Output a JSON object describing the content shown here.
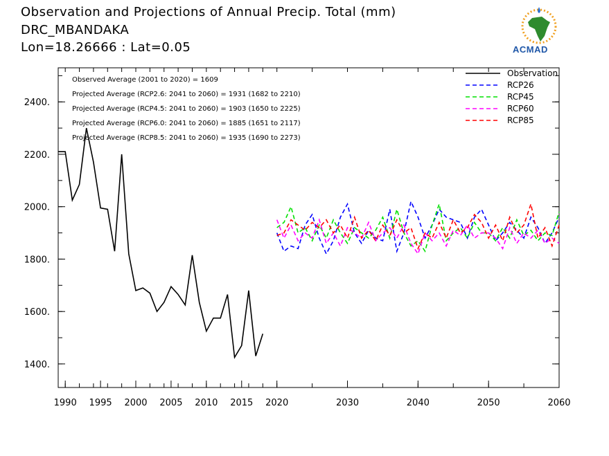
{
  "header": {
    "title": "Observation and Projections of Annual Precip. Total (mm)",
    "station": "DRC_MBANDAKA",
    "coords": "Lon=18.26666 : Lat=0.05"
  },
  "logo": {
    "text": "ACMAD"
  },
  "chart_data": {
    "type": "line",
    "xlim": [
      1989,
      2060
    ],
    "ylim": [
      1310,
      2530
    ],
    "grid": false,
    "legend_position": "top-right",
    "x_ticks": [
      1990,
      1995,
      2000,
      2005,
      2010,
      2015,
      2020,
      2030,
      2040,
      2050,
      2060
    ],
    "x_tick_labels": [
      "1990",
      "1995",
      "2000",
      "2005",
      "2010",
      "2015",
      "2020",
      "2030",
      "2040",
      "2050",
      "2060"
    ],
    "y_ticks": [
      1400,
      1600,
      1800,
      2000,
      2200,
      2400
    ],
    "y_tick_labels": [
      "1400.",
      "1600.",
      "1800.",
      "2000.",
      "2200.",
      "2400."
    ],
    "annotations": [
      "Observed Average (2001 to 2020) = 1609",
      "Projected Average (RCP2.6: 2041 to 2060) = 1931 (1682 to 2210)",
      "Projected Average (RCP4.5: 2041 to 2060) = 1903 (1650 to 2225)",
      "Projected Average (RCP6.0: 2041 to 2060) = 1885 (1651 to 2117)",
      "Projected Average (RCP8.5: 2041 to 2060) = 1935 (1690 to 2273)"
    ],
    "series": [
      {
        "name": "Observation",
        "color": "#000000",
        "style": "solid",
        "x": [
          1989,
          1990,
          1991,
          1992,
          1993,
          1994,
          1995,
          1996,
          1997,
          1998,
          1999,
          2000,
          2001,
          2002,
          2003,
          2004,
          2005,
          2006,
          2007,
          2008,
          2009,
          2010,
          2011,
          2012,
          2013,
          2014,
          2015,
          2016,
          2017,
          2018,
          2019,
          2020
        ],
        "values": [
          2210,
          2210,
          2025,
          2085,
          2300,
          2170,
          1995,
          1990,
          1830,
          2200,
          1820,
          1680,
          1690,
          1670,
          1600,
          1635,
          1695,
          1665,
          1625,
          1815,
          1635,
          1525,
          1575,
          1575,
          1665,
          1425,
          1470,
          1680,
          1430,
          1515,
          null,
          null
        ]
      },
      {
        "name": "RCP26",
        "color": "#0000ff",
        "style": "dashed",
        "x": [
          2020,
          2021,
          2022,
          2023,
          2024,
          2025,
          2026,
          2027,
          2028,
          2029,
          2030,
          2031,
          2032,
          2033,
          2034,
          2035,
          2036,
          2037,
          2038,
          2039,
          2040,
          2041,
          2042,
          2043,
          2044,
          2045,
          2046,
          2047,
          2048,
          2049,
          2050,
          2051,
          2052,
          2053,
          2054,
          2055,
          2056,
          2057,
          2058,
          2059,
          2060
        ],
        "values": [
          1900,
          1830,
          1850,
          1840,
          1930,
          1970,
          1880,
          1820,
          1870,
          1960,
          2010,
          1900,
          1860,
          1910,
          1880,
          1870,
          1990,
          1830,
          1900,
          2020,
          1960,
          1880,
          1930,
          1990,
          1960,
          1950,
          1940,
          1880,
          1960,
          1990,
          1930,
          1870,
          1900,
          1940,
          1910,
          1880,
          1960,
          1920,
          1860,
          1900,
          1960
        ]
      },
      {
        "name": "RCP45",
        "color": "#00e000",
        "style": "dashed",
        "x": [
          2020,
          2021,
          2022,
          2023,
          2024,
          2025,
          2026,
          2027,
          2028,
          2029,
          2030,
          2031,
          2032,
          2033,
          2034,
          2035,
          2036,
          2037,
          2038,
          2039,
          2040,
          2041,
          2042,
          2043,
          2044,
          2045,
          2046,
          2047,
          2048,
          2049,
          2050,
          2051,
          2052,
          2053,
          2054,
          2055,
          2056,
          2057,
          2058,
          2059,
          2060
        ],
        "values": [
          1920,
          1940,
          2000,
          1900,
          1920,
          1870,
          1930,
          1880,
          1950,
          1900,
          1860,
          1920,
          1900,
          1880,
          1910,
          1960,
          1880,
          1990,
          1900,
          1850,
          1870,
          1830,
          1930,
          2010,
          1870,
          1900,
          1920,
          1880,
          1940,
          1900,
          1900,
          1870,
          1920,
          1880,
          1950,
          1890,
          1910,
          1870,
          1900,
          1890,
          1980
        ]
      },
      {
        "name": "RCP60",
        "color": "#ff00ff",
        "style": "dashed",
        "x": [
          2020,
          2021,
          2022,
          2023,
          2024,
          2025,
          2026,
          2027,
          2028,
          2029,
          2030,
          2031,
          2032,
          2033,
          2034,
          2035,
          2036,
          2037,
          2038,
          2039,
          2040,
          2041,
          2042,
          2043,
          2044,
          2045,
          2046,
          2047,
          2048,
          2049,
          2050,
          2051,
          2052,
          2053,
          2054,
          2055,
          2056,
          2057,
          2058,
          2059,
          2060
        ],
        "values": [
          1950,
          1880,
          1930,
          1870,
          1900,
          1880,
          1950,
          1860,
          1900,
          1850,
          1920,
          1900,
          1880,
          1940,
          1870,
          1900,
          1920,
          1880,
          1930,
          1860,
          1820,
          1900,
          1870,
          1900,
          1850,
          1910,
          1890,
          1930,
          1880,
          1900,
          1900,
          1880,
          1840,
          1920,
          1860,
          1900,
          1880,
          1910,
          1860,
          1880,
          1860
        ]
      },
      {
        "name": "RCP85",
        "color": "#ff0000",
        "style": "dashed",
        "x": [
          2020,
          2021,
          2022,
          2023,
          2024,
          2025,
          2026,
          2027,
          2028,
          2029,
          2030,
          2031,
          2032,
          2033,
          2034,
          2035,
          2036,
          2037,
          2038,
          2039,
          2040,
          2041,
          2042,
          2043,
          2044,
          2045,
          2046,
          2047,
          2048,
          2049,
          2050,
          2051,
          2052,
          2053,
          2054,
          2055,
          2056,
          2057,
          2058,
          2059,
          2060
        ],
        "values": [
          1890,
          1900,
          1950,
          1930,
          1910,
          1940,
          1920,
          1950,
          1900,
          1930,
          1880,
          1960,
          1880,
          1910,
          1870,
          1930,
          1890,
          1950,
          1900,
          1920,
          1840,
          1900,
          1880,
          1940,
          1880,
          1950,
          1900,
          1920,
          1970,
          1940,
          1880,
          1930,
          1870,
          1960,
          1900,
          1930,
          2010,
          1880,
          1920,
          1850,
          1930
        ]
      }
    ]
  }
}
